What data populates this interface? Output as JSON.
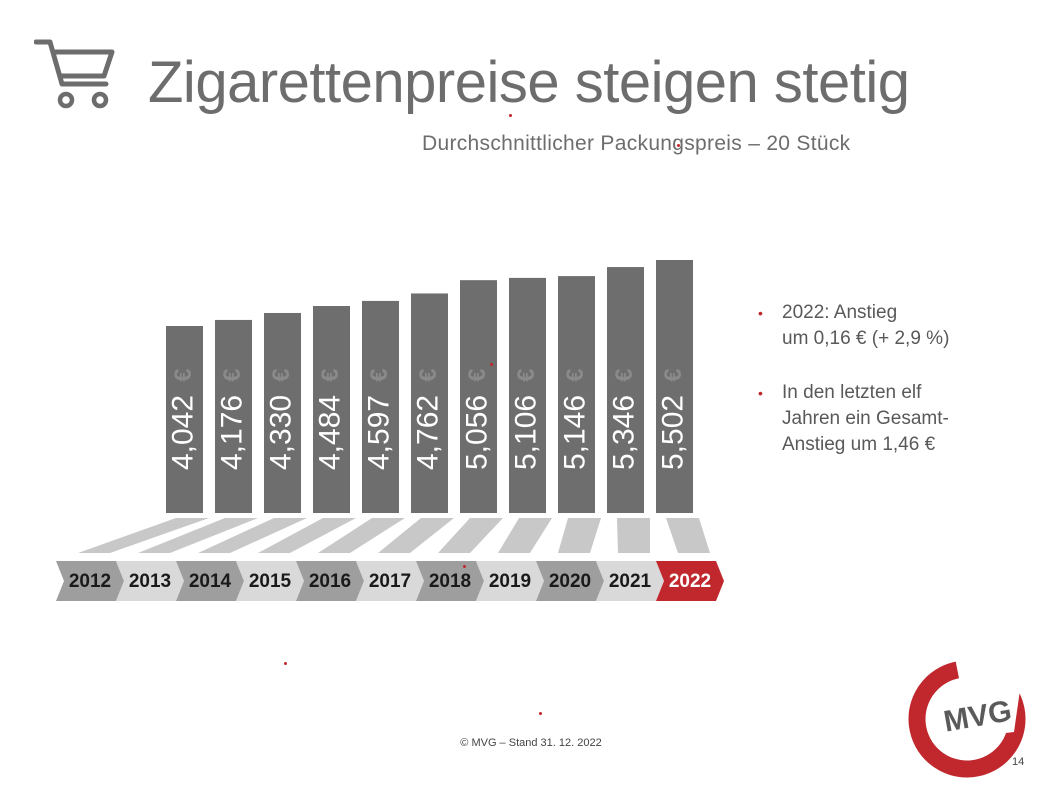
{
  "title": "Zigarettenpreise steigen stetig",
  "subtitle": "Durchschnittlicher Packungspreis – 20 Stück",
  "chart_data": {
    "type": "bar",
    "categories": [
      "2012",
      "2013",
      "2014",
      "2015",
      "2016",
      "2017",
      "2018",
      "2019",
      "2020",
      "2021",
      "2022"
    ],
    "values": [
      4.042,
      4.176,
      4.33,
      4.484,
      4.597,
      4.762,
      5.056,
      5.106,
      5.146,
      5.346,
      5.502
    ],
    "value_labels": [
      "4,042",
      "4,176",
      "4,330",
      "4,484",
      "4,597",
      "4,762",
      "5,056",
      "5,106",
      "5,146",
      "5,346",
      "5,502"
    ],
    "unit_symbol": "€",
    "highlight_category": "2022",
    "colors": {
      "bar": "#6e6e6e",
      "floor": "#c8c8c8",
      "highlight": "#c0282d",
      "year_dark": "#9e9e9e",
      "year_light": "#d9d9d9"
    }
  },
  "notes": [
    {
      "line1": "2022: Anstieg",
      "line2": "um 0,16 € (+ 2,9 %)"
    },
    {
      "line1": "In den letzten elf",
      "line2": "Jahren ein Gesamt-",
      "line3": "Anstieg um 1,46 €"
    }
  ],
  "footer": "© MVG – Stand 31. 12. 2022",
  "logo_text": "MVG",
  "page_number": "14",
  "icons": {
    "cart": "shopping-cart-icon",
    "bullet": "•"
  }
}
